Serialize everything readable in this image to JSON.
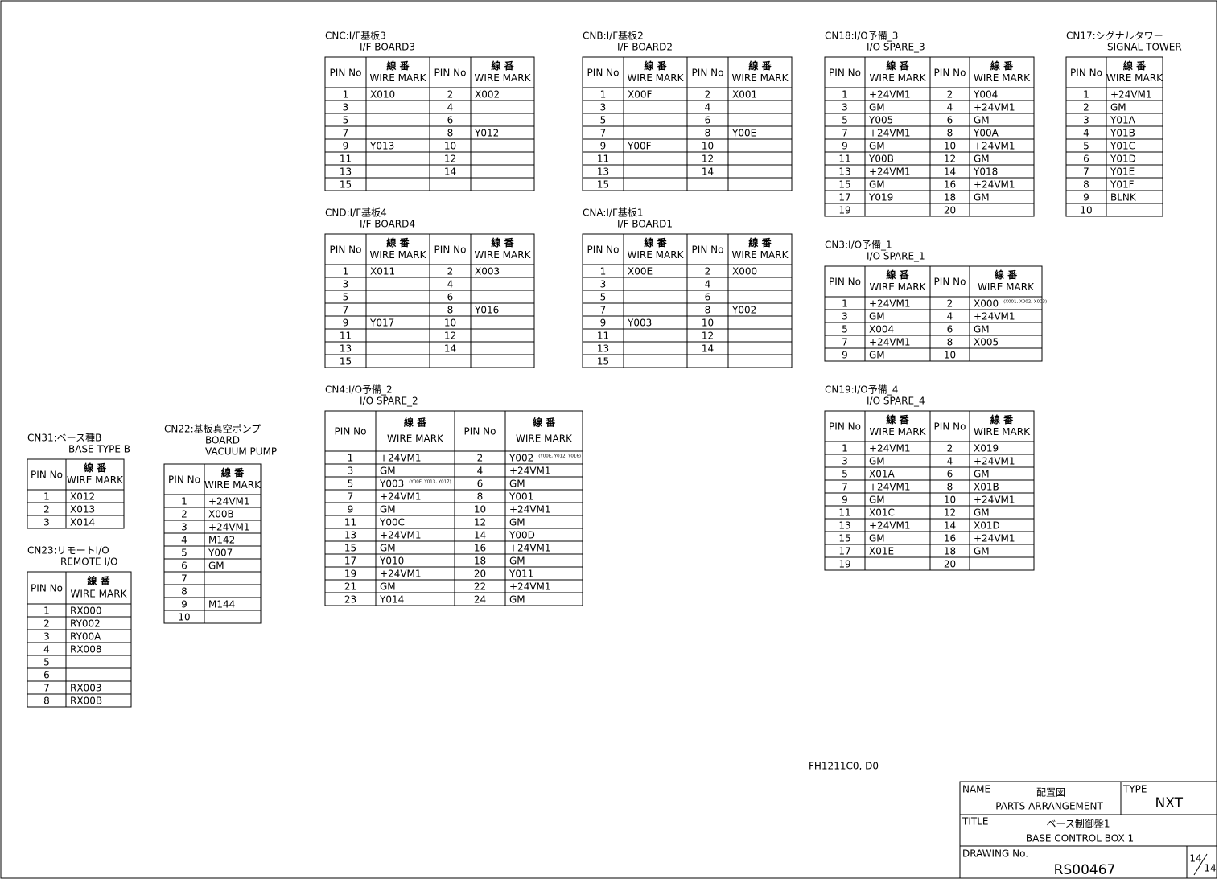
{
  "header": {
    "pin": "PIN No",
    "kanji": "線 番",
    "wire": "WIRE MARK"
  },
  "tables": [
    {
      "title": [
        "CNC:I/F基板3",
        "I/F BOARD3"
      ],
      "rows": [
        [
          1,
          "X010",
          2,
          "X002"
        ],
        [
          3,
          null,
          4,
          null
        ],
        [
          5,
          null,
          6,
          null
        ],
        [
          7,
          null,
          8,
          "Y012"
        ],
        [
          9,
          "Y013",
          10,
          null
        ],
        [
          11,
          null,
          12,
          null
        ],
        [
          13,
          null,
          14,
          null
        ],
        [
          15,
          null,
          null,
          null
        ]
      ]
    },
    {
      "title": [
        "CNB:I/F基板2",
        "I/F BOARD2"
      ],
      "rows": [
        [
          1,
          "X00F",
          2,
          "X001"
        ],
        [
          3,
          null,
          4,
          null
        ],
        [
          5,
          null,
          6,
          null
        ],
        [
          7,
          null,
          8,
          "Y00E"
        ],
        [
          9,
          "Y00F",
          10,
          null
        ],
        [
          11,
          null,
          12,
          null
        ],
        [
          13,
          null,
          14,
          null
        ],
        [
          15,
          null,
          null,
          null
        ]
      ]
    },
    {
      "title": [
        "CND:I/F基板4",
        "I/F BOARD4"
      ],
      "rows": [
        [
          1,
          "X011",
          2,
          "X003"
        ],
        [
          3,
          null,
          4,
          null
        ],
        [
          5,
          null,
          6,
          null
        ],
        [
          7,
          null,
          8,
          "Y016"
        ],
        [
          9,
          "Y017",
          10,
          null
        ],
        [
          11,
          null,
          12,
          null
        ],
        [
          13,
          null,
          14,
          null
        ],
        [
          15,
          null,
          null,
          null
        ]
      ]
    },
    {
      "title": [
        "CNA:I/F基板1",
        "I/F BOARD1"
      ],
      "rows": [
        [
          1,
          "X00E",
          2,
          "X000"
        ],
        [
          3,
          null,
          4,
          null
        ],
        [
          5,
          null,
          6,
          null
        ],
        [
          7,
          null,
          8,
          "Y002"
        ],
        [
          9,
          "Y003",
          10,
          null
        ],
        [
          11,
          null,
          12,
          null
        ],
        [
          13,
          null,
          14,
          null
        ],
        [
          15,
          null,
          null,
          null
        ]
      ]
    },
    {
      "title": [
        "CN18:I/O予備_3",
        "I/O SPARE_3"
      ],
      "rows": [
        [
          1,
          "+24VM1",
          2,
          "Y004"
        ],
        [
          3,
          "GM",
          4,
          "+24VM1"
        ],
        [
          5,
          "Y005",
          6,
          "GM"
        ],
        [
          7,
          "+24VM1",
          8,
          "Y00A"
        ],
        [
          9,
          "GM",
          10,
          "+24VM1"
        ],
        [
          11,
          "Y00B",
          12,
          "GM"
        ],
        [
          13,
          "+24VM1",
          14,
          "Y018"
        ],
        [
          15,
          "GM",
          16,
          "+24VM1"
        ],
        [
          17,
          "Y019",
          18,
          "GM"
        ],
        [
          19,
          null,
          20,
          null
        ]
      ]
    },
    {
      "title": [
        "CN17:シグナルタワー",
        "SIGNAL TOWER"
      ],
      "rows": [
        [
          1,
          "+24VM1"
        ],
        [
          2,
          "GM"
        ],
        [
          3,
          "Y01A"
        ],
        [
          4,
          "Y01B"
        ],
        [
          5,
          "Y01C"
        ],
        [
          6,
          "Y01D"
        ],
        [
          7,
          "Y01E"
        ],
        [
          8,
          "Y01F"
        ],
        [
          9,
          "BLNK"
        ],
        [
          10,
          null
        ]
      ]
    },
    {
      "title": [
        "CN3:I/O予備_1",
        "I/O SPARE_1"
      ],
      "rows": [
        [
          1,
          "+24VM1",
          2,
          {
            "text": "X000",
            "note": "(X001, X002, X003)"
          }
        ],
        [
          3,
          "GM",
          4,
          "+24VM1"
        ],
        [
          5,
          "X004",
          6,
          "GM"
        ],
        [
          7,
          "+24VM1",
          8,
          "X005"
        ],
        [
          9,
          "GM",
          10,
          null
        ]
      ]
    },
    {
      "title": [
        "CN4:I/O予備_2",
        "I/O SPARE_2"
      ],
      "rows": [
        [
          1,
          "+24VM1",
          2,
          {
            "text": "Y002",
            "note": "(Y00E, Y012, Y016)"
          }
        ],
        [
          3,
          "GM",
          4,
          "+24VM1"
        ],
        [
          5,
          {
            "text": "Y003",
            "note": "(Y00F, Y013, Y017)"
          },
          6,
          "GM"
        ],
        [
          7,
          "+24VM1",
          8,
          "Y001"
        ],
        [
          9,
          "GM",
          10,
          "+24VM1"
        ],
        [
          11,
          "Y00C",
          12,
          "GM"
        ],
        [
          13,
          "+24VM1",
          14,
          "Y00D"
        ],
        [
          15,
          "GM",
          16,
          "+24VM1"
        ],
        [
          17,
          "Y010",
          18,
          "GM"
        ],
        [
          19,
          "+24VM1",
          20,
          "Y011"
        ],
        [
          21,
          "GM",
          22,
          "+24VM1"
        ],
        [
          23,
          "Y014",
          24,
          "GM"
        ]
      ]
    },
    {
      "title": [
        "CN19:I/O予備_4",
        "I/O SPARE_4"
      ],
      "rows": [
        [
          1,
          "+24VM1",
          2,
          "X019"
        ],
        [
          3,
          "GM",
          4,
          "+24VM1"
        ],
        [
          5,
          "X01A",
          6,
          "GM"
        ],
        [
          7,
          "+24VM1",
          8,
          "X01B"
        ],
        [
          9,
          "GM",
          10,
          "+24VM1"
        ],
        [
          11,
          "X01C",
          12,
          "GM"
        ],
        [
          13,
          "+24VM1",
          14,
          "X01D"
        ],
        [
          15,
          "GM",
          16,
          "+24VM1"
        ],
        [
          17,
          "X01E",
          18,
          "GM"
        ],
        [
          19,
          null,
          20,
          null
        ]
      ]
    },
    {
      "title": [
        "CN31:ベース種B",
        "BASE TYPE B"
      ],
      "rows": [
        [
          1,
          "X012"
        ],
        [
          2,
          "X013"
        ],
        [
          3,
          "X014"
        ]
      ]
    },
    {
      "title": [
        "CN22:基板真空ポンプ",
        "BOARD",
        "VACUUM PUMP"
      ],
      "rows": [
        [
          1,
          "+24VM1"
        ],
        [
          2,
          "X00B"
        ],
        [
          3,
          "+24VM1"
        ],
        [
          4,
          "M142"
        ],
        [
          5,
          "Y007"
        ],
        [
          6,
          "GM"
        ],
        [
          7,
          null
        ],
        [
          8,
          null
        ],
        [
          9,
          "M144"
        ],
        [
          10,
          null
        ]
      ]
    },
    {
      "title": [
        "CN23:リモートI/O",
        "REMOTE I/O"
      ],
      "rows": [
        [
          1,
          "RX000"
        ],
        [
          2,
          "RY002"
        ],
        [
          3,
          "RY00A"
        ],
        [
          4,
          "RX008"
        ],
        [
          5,
          null
        ],
        [
          6,
          null
        ],
        [
          7,
          "RX003"
        ],
        [
          8,
          "RX00B"
        ]
      ]
    }
  ],
  "drawing_code": "FH1211C0, D0",
  "title_block": {
    "name_label": "NAME",
    "name_ja": "配置図",
    "name_en": "PARTS ARRANGEMENT",
    "type_label": "TYPE",
    "type": "NXT",
    "title_label": "TITLE",
    "title_ja": "ベース制御盤1",
    "title_en": "BASE CONTROL BOX 1",
    "drawing_no_label": "DRAWING No.",
    "drawing_no": "RS00467",
    "sheet": "14",
    "sheets": "14"
  }
}
